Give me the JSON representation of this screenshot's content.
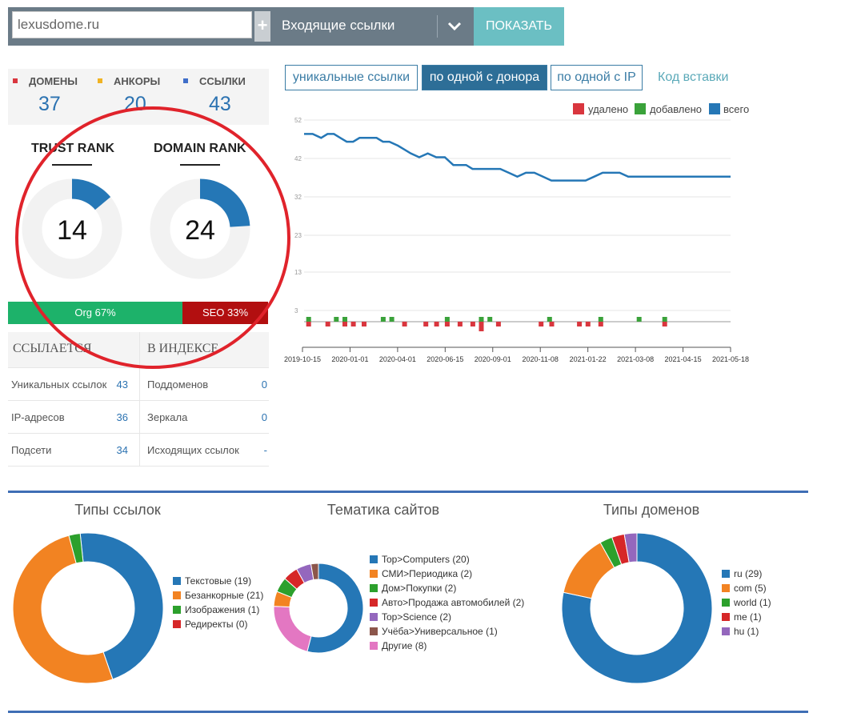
{
  "search": {
    "domain_value": "lexusdome.ru",
    "plus": "+",
    "mode": "Входящие ссылки",
    "show_label": "ПОКАЗАТЬ"
  },
  "stats": [
    {
      "label": "ДОМЕНЫ",
      "value": "37",
      "color": "#d9363e"
    },
    {
      "label": "АНКОРЫ",
      "value": "20",
      "color": "#f0b323"
    },
    {
      "label": "ССЫЛКИ",
      "value": "43",
      "color": "#3f6ec9"
    }
  ],
  "ranks": {
    "trust": {
      "title": "TRUST RANK",
      "value": "14",
      "fraction": 0.14
    },
    "domain": {
      "title": "DOMAIN RANK",
      "value": "24",
      "fraction": 0.24
    },
    "accent": "#2577b6",
    "track": "#f2f2f2"
  },
  "annotation": {
    "color": "#e0232b"
  },
  "org_seo": {
    "org_label": "Org 67%",
    "seo_label": "SEO 33%",
    "org_pct": 67,
    "seo_pct": 33
  },
  "index_table": {
    "head_left": "ССЫЛАЕТСЯ",
    "head_right": "В ИНДЕКСЕ",
    "rows": [
      {
        "l_label": "Уникальных ссылок",
        "l_value": "43",
        "r_label": "Поддоменов",
        "r_value": "0"
      },
      {
        "l_label": "IP-адресов",
        "l_value": "36",
        "r_label": "Зеркала",
        "r_value": "0"
      },
      {
        "l_label": "Подсети",
        "l_value": "34",
        "r_label": "Исходящих ссылок",
        "r_value": "-"
      }
    ]
  },
  "tabs": [
    "уникальные ссылки",
    "по одной с донора",
    "по одной с IP"
  ],
  "embed_link": "Код вставки",
  "line_legend": [
    {
      "label": "удалено",
      "color": "#d9363e"
    },
    {
      "label": "добавлено",
      "color": "#3aa23a"
    },
    {
      "label": "всего",
      "color": "#2577b6"
    }
  ],
  "chart_data": [
    {
      "type": "line",
      "y_ticks": [
        "52",
        "42",
        "32",
        "23",
        "13",
        "3"
      ],
      "x_ticks": [
        "2019-10-15",
        "2020-01-01",
        "2020-04-01",
        "2020-06-15",
        "2020-09-01",
        "2020-11-08",
        "2021-01-22",
        "2021-03-08",
        "2021-04-15",
        "2021-05-18"
      ],
      "series": [
        {
          "name": "всего",
          "color": "#2577b6",
          "x": [
            0,
            0.02,
            0.04,
            0.055,
            0.07,
            0.085,
            0.1,
            0.115,
            0.13,
            0.15,
            0.17,
            0.185,
            0.2,
            0.22,
            0.235,
            0.25,
            0.27,
            0.29,
            0.31,
            0.33,
            0.35,
            0.365,
            0.38,
            0.395,
            0.41,
            0.43,
            0.445,
            0.46,
            0.48,
            0.5,
            0.52,
            0.54,
            0.56,
            0.58,
            0.6,
            0.62,
            0.64,
            0.66,
            0.68,
            0.7,
            0.72,
            0.74,
            0.76,
            0.78,
            0.8,
            0.82,
            0.84,
            0.86,
            0.88,
            0.9,
            0.92,
            0.94,
            0.96,
            0.98,
            1.0
          ],
          "y": [
            48.4,
            48.4,
            47.4,
            48.4,
            48.4,
            47.4,
            46.4,
            46.4,
            47.4,
            47.4,
            47.4,
            46.4,
            46.4,
            45.4,
            44.4,
            43.4,
            42.4,
            43.4,
            42.4,
            42.4,
            40.4,
            40.4,
            40.4,
            39.4,
            39.4,
            39.4,
            39.4,
            39.4,
            38.4,
            37.4,
            38.4,
            38.4,
            37.4,
            36.4,
            36.4,
            36.4,
            36.4,
            36.4,
            37.4,
            38.4,
            38.4,
            38.4,
            37.4,
            37.4,
            37.4,
            37.4,
            37.4,
            37.4,
            37.4,
            37.4,
            37.4,
            37.4,
            37.4,
            37.4,
            37.4
          ]
        },
        {
          "name": "добавлено",
          "color": "#3aa23a",
          "x": [
            0.005,
            0.07,
            0.09,
            0.18,
            0.2,
            0.33,
            0.41,
            0.43,
            0.57,
            0.69,
            0.78,
            0.84
          ],
          "y": [
            1,
            1,
            1,
            1,
            1,
            1,
            1,
            1,
            1,
            1,
            1,
            1
          ]
        },
        {
          "name": "удалено",
          "color": "#d9363e",
          "x": [
            0.005,
            0.05,
            0.09,
            0.11,
            0.135,
            0.23,
            0.28,
            0.305,
            0.33,
            0.36,
            0.39,
            0.41,
            0.45,
            0.55,
            0.575,
            0.64,
            0.66,
            0.69,
            0.84
          ],
          "y": [
            -1,
            -1,
            -1,
            -1,
            -1,
            -1,
            -1,
            -1,
            -1,
            -1,
            -1,
            -2,
            -1,
            -1,
            -1,
            -1,
            -1,
            -1,
            -1
          ]
        }
      ],
      "ylim": [
        0,
        52
      ],
      "grid": true,
      "legend": "top-right"
    },
    {
      "type": "pie",
      "title": "Типы ссылок",
      "labels": [
        "Текстовые (19)",
        "Безанкорные (21)",
        "Изображения (1)",
        "Редиректы (0)"
      ],
      "values": [
        19,
        21,
        1,
        0
      ],
      "colors": [
        "#2577b6",
        "#f28322",
        "#2ca02c",
        "#d62728"
      ],
      "start_angle": -6
    },
    {
      "type": "pie",
      "title": "Тематика сайтов",
      "labels": [
        "Top>Computers (20)",
        "СМИ>Периодика (2)",
        "Дом>Покупки (2)",
        "Авто>Продажа автомобилей (2)",
        "Top>Science (2)",
        "Учёба>Универсальное (1)",
        "Другие (8)"
      ],
      "values": [
        20,
        2,
        2,
        2,
        2,
        1,
        8
      ],
      "colors": [
        "#2577b6",
        "#f28322",
        "#2ca02c",
        "#d62728",
        "#9467bd",
        "#8c564b",
        "#e377c2"
      ],
      "order": [
        0,
        6,
        1,
        2,
        3,
        4,
        5
      ],
      "start_angle": 0
    },
    {
      "type": "pie",
      "title": "Типы доменов",
      "labels": [
        "ru (29)",
        "com (5)",
        "world (1)",
        "me (1)",
        "hu (1)"
      ],
      "values": [
        29,
        5,
        1,
        1,
        1
      ],
      "colors": [
        "#2577b6",
        "#f28322",
        "#2ca02c",
        "#d62728",
        "#9467bd"
      ],
      "start_angle": 0
    }
  ]
}
